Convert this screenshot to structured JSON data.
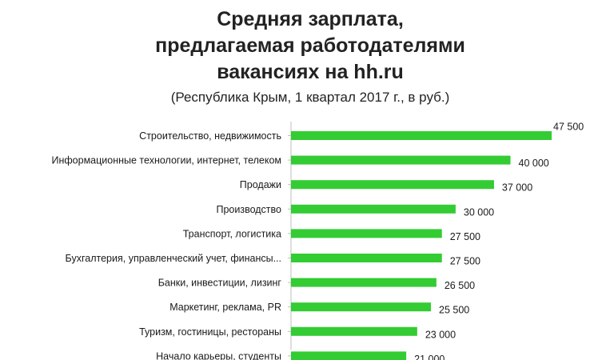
{
  "title": {
    "line1": "Средняя зарплата,",
    "line2": "предлагаемая работодателями",
    "line3": "вакансиях на hh.ru",
    "subtitle": "(Республика Крым, 1 квартал 2017 г., в руб.)"
  },
  "colors": {
    "bar": "#33cc33",
    "axis": "#bfbfbf"
  },
  "chart_data": {
    "type": "bar",
    "orientation": "horizontal",
    "categories": [
      "Строительство, недвижимость",
      "Информационные технологии, интернет, телеком",
      "Продажи",
      "Производство",
      "Транспорт, логистика",
      "Бухгалтерия, управленческий учет, финансы...",
      "Банки, инвестиции, лизинг",
      "Маркетинг, реклама, PR",
      "Туризм, гостиницы, рестораны",
      "Начало карьеры, студенты"
    ],
    "values": [
      47500,
      40000,
      37000,
      30000,
      27500,
      27500,
      26500,
      25500,
      23000,
      21000
    ],
    "value_labels": [
      "47 500",
      "40 000",
      "37 000",
      "30 000",
      "27 500",
      "27 500",
      "26 500",
      "25 500",
      "23 000",
      "21 000"
    ],
    "xlim": [
      0,
      47500
    ],
    "grid": false,
    "legend": "none"
  }
}
